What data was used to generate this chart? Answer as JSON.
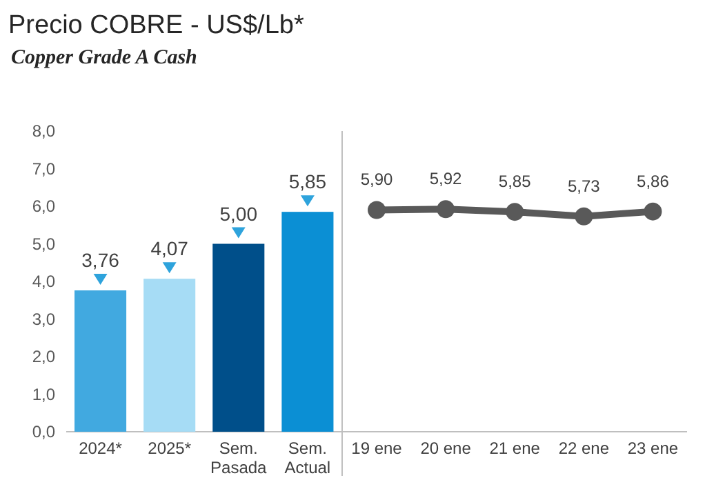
{
  "chart_data": {
    "type": "bar",
    "title": "Precio COBRE - US$/Lb*",
    "subtitle": "Copper Grade A Cash",
    "categories": [
      "2024*",
      "2025*",
      "Sem.\nPasada",
      "Sem.\nActual",
      "19 ene",
      "20 ene",
      "21 ene",
      "22 ene",
      "23 ene"
    ],
    "series": [
      {
        "colors": [
          "#41a9e0",
          "#a6dcf5",
          "#004f8a",
          "#0b8fd4",
          null,
          null,
          null,
          null,
          null
        ],
        "values": [
          3.76,
          4.07,
          5.0,
          5.85,
          null,
          null,
          null,
          null,
          null
        ],
        "value_labels": [
          "3,76",
          "4,07",
          "5,00",
          "5,85",
          null,
          null,
          null,
          null,
          null
        ]
      },
      {
        "type": "line",
        "color": "#595959",
        "marker": "circle",
        "values": [
          null,
          null,
          null,
          null,
          5.9,
          5.92,
          5.85,
          5.73,
          5.86
        ],
        "value_labels": [
          null,
          null,
          null,
          null,
          "5,90",
          "5,92",
          "5,85",
          "5,73",
          "5,86"
        ]
      }
    ],
    "ylim": [
      0,
      8
    ],
    "yticks": [
      {
        "value": 0,
        "label": "0,0"
      },
      {
        "value": 1,
        "label": "1,0"
      },
      {
        "value": 2,
        "label": "2,0"
      },
      {
        "value": 3,
        "label": "3,0"
      },
      {
        "value": 4,
        "label": "4,0"
      },
      {
        "value": 5,
        "label": "5,0"
      },
      {
        "value": 6,
        "label": "6,0"
      },
      {
        "value": 7,
        "label": "7,0"
      },
      {
        "value": 8,
        "label": "8,0"
      }
    ],
    "grid": false
  }
}
